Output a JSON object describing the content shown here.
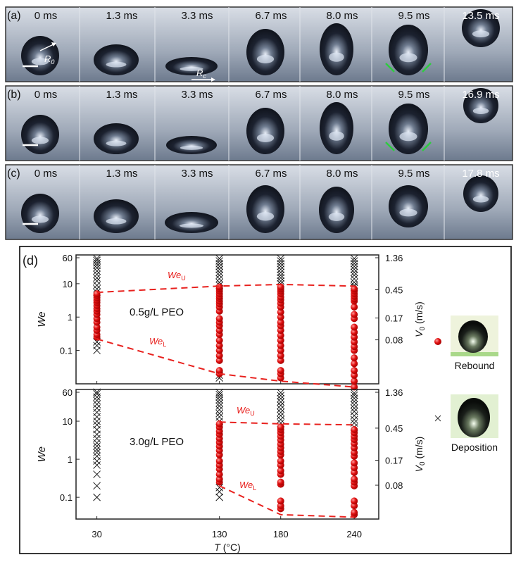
{
  "panels": [
    {
      "label": "(a)",
      "times": [
        "0 ms",
        "1.3 ms",
        "3.3 ms",
        "6.7 ms",
        "8.0 ms",
        "9.5 ms",
        "13.5 ms"
      ],
      "annotations": {
        "r0": "R",
        "r0_sub": "0",
        "rc": "R",
        "rc_sub": "c"
      }
    },
    {
      "label": "(b)",
      "times": [
        "0 ms",
        "1.3 ms",
        "3.3 ms",
        "6.7 ms",
        "8.0 ms",
        "9.5 ms",
        "16.9 ms"
      ]
    },
    {
      "label": "(c)",
      "times": [
        "0 ms",
        "1.3 ms",
        "3.3 ms",
        "6.7 ms",
        "8.0 ms",
        "9.5 ms",
        "17.8 ms"
      ]
    }
  ],
  "legend": {
    "rebound": "Rebound",
    "deposition": "Deposition"
  },
  "colors": {
    "rebound": "#e01010",
    "deposition": "#111111",
    "threshold": "#e8211e",
    "arrow": "#2ecc40"
  },
  "chart_data": [
    {
      "type": "scatter",
      "panel_label": "(d)",
      "annotation": "0.5g/L PEO",
      "ylabel": "We",
      "ylabel_right": "V",
      "ylabel_right_sub": "0",
      "ylabel_right_unit": " (m/s)",
      "yscale": "log",
      "ylim": [
        0.011,
        60
      ],
      "xlim": [
        13,
        260
      ],
      "yticks": [
        "60",
        "10",
        "1",
        "0.1"
      ],
      "ytick_values": [
        60,
        10,
        1,
        0.1
      ],
      "yticks_right": [
        "1.36",
        "0.45",
        "0.17",
        "0.08"
      ],
      "yticks_right_values": [
        1.36,
        0.45,
        0.17,
        0.08
      ],
      "x": [
        30,
        130,
        180,
        240
      ],
      "thresholds": {
        "upper": {
          "name": "We",
          "sub": "U",
          "values": [
            5.5,
            8.5,
            9.5,
            8.5
          ]
        },
        "lower": {
          "name": "We",
          "sub": "L",
          "values": [
            0.22,
            0.02,
            0.012,
            0.008
          ]
        }
      },
      "series": [
        {
          "name": "Rebound",
          "points": {
            "30": [
              0.25,
              0.3,
              0.4,
              0.5,
              0.7,
              0.9,
              1.2,
              1.5,
              1.8,
              2.2,
              2.7,
              3.2,
              3.8,
              4.5,
              5
            ],
            "130": [
              0.02,
              0.025,
              0.05,
              0.07,
              0.1,
              0.14,
              0.2,
              0.3,
              0.4,
              0.55,
              0.7,
              0.9,
              1.5,
              2,
              2.5,
              3,
              3.6,
              4.2,
              5,
              6,
              7,
              8
            ],
            "180": [
              0.015,
              0.02,
              0.025,
              0.05,
              0.07,
              0.1,
              0.14,
              0.2,
              0.28,
              0.4,
              0.55,
              0.7,
              1,
              1.4,
              2,
              2.6,
              3.3,
              4,
              5,
              6,
              7,
              8
            ],
            "240": [
              0.008,
              0.012,
              0.018,
              0.025,
              0.04,
              0.06,
              0.1,
              0.13,
              0.18,
              0.25,
              0.35,
              0.5,
              0.9,
              1.2,
              2,
              3,
              3.5,
              4.2,
              5,
              6,
              7
            ]
          }
        },
        {
          "name": "Deposition",
          "points": {
            "30": [
              0.1,
              0.14,
              0.18,
              5.5,
              7,
              9,
              12,
              15,
              19,
              24,
              30,
              36,
              42,
              50,
              57
            ],
            "130": [
              0.015,
              0.018,
              9,
              11,
              14,
              18,
              22,
              27,
              33,
              40,
              48,
              57
            ],
            "180": [
              10,
              12,
              15,
              18,
              22,
              27,
              33,
              40,
              48,
              57
            ],
            "240": [
              8,
              9,
              11,
              14,
              18,
              22,
              27,
              33,
              40,
              48,
              57
            ]
          }
        }
      ]
    },
    {
      "type": "scatter",
      "annotation": "3.0g/L PEO",
      "ylabel": "We",
      "ylabel_right": "V",
      "ylabel_right_sub": "0",
      "ylabel_right_unit": " (m/s)",
      "xlabel": "T",
      "xlabel_unit": " (°C)",
      "yscale": "log",
      "ylim": [
        0.028,
        60
      ],
      "xlim": [
        13,
        260
      ],
      "xticks": [
        "30",
        "130",
        "180",
        "240"
      ],
      "yticks": [
        "60",
        "10",
        "1",
        "0.1"
      ],
      "ytick_values": [
        60,
        10,
        1,
        0.1
      ],
      "yticks_right": [
        "1.36",
        "0.45",
        "0.17",
        "0.08"
      ],
      "yticks_right_values": [
        1.36,
        0.45,
        0.17,
        0.08
      ],
      "x": [
        30,
        130,
        180,
        240
      ],
      "thresholds": {
        "upper": {
          "name": "We",
          "sub": "U",
          "values": [
            null,
            9.5,
            8.5,
            8
          ]
        },
        "lower": {
          "name": "We",
          "sub": "L",
          "values": [
            null,
            0.2,
            0.035,
            0.03
          ]
        }
      },
      "series": [
        {
          "name": "Rebound",
          "points": {
            "30": [],
            "130": [
              0.25,
              0.3,
              0.4,
              0.55,
              0.7,
              0.9,
              1.3,
              1.7,
              2.2,
              2.8,
              3.5,
              4.5,
              5.5,
              7,
              8.5
            ],
            "180": [
              0.05,
              0.06,
              0.08,
              0.22,
              0.25,
              0.4,
              0.5,
              0.7,
              0.9,
              1.3,
              1.6,
              2,
              2.5,
              3.2,
              4,
              5,
              6,
              7
            ],
            "240": [
              0.035,
              0.04,
              0.06,
              0.08,
              0.2,
              0.25,
              0.3,
              0.45,
              0.6,
              0.8,
              1.2,
              1.5,
              2,
              2.6,
              3.3,
              4,
              5,
              6
            ]
          }
        },
        {
          "name": "Deposition",
          "points": {
            "30": [
              0.1,
              0.2,
              0.4,
              0.7,
              0.9,
              1.2,
              1.5,
              1.8,
              2.2,
              2.7,
              3.5,
              4.5,
              6,
              8,
              10,
              13,
              17,
              22,
              28,
              35,
              43,
              52,
              58
            ],
            "130": [
              0.1,
              0.14,
              0.18,
              10,
              13,
              16,
              20,
              25,
              30,
              36,
              43,
              50,
              57
            ],
            "180": [
              9,
              11,
              14,
              17,
              21,
              26,
              32,
              39,
              47,
              56
            ],
            "240": [
              7,
              9,
              11,
              14,
              18,
              22,
              27,
              33,
              40,
              48,
              55
            ]
          }
        }
      ]
    }
  ]
}
